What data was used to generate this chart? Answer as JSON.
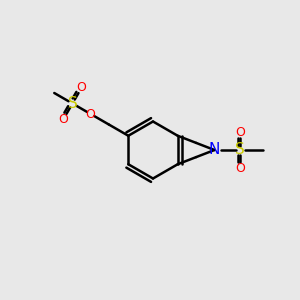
{
  "bg_color": "#e8e8e8",
  "bond_color": "#000000",
  "bond_width": 1.8,
  "N_color": "#0000ff",
  "O_color": "#ff0000",
  "S_color": "#cccc00",
  "figsize": [
    3.0,
    3.0
  ],
  "dpi": 100,
  "xlim": [
    0,
    10
  ],
  "ylim": [
    0,
    10
  ]
}
